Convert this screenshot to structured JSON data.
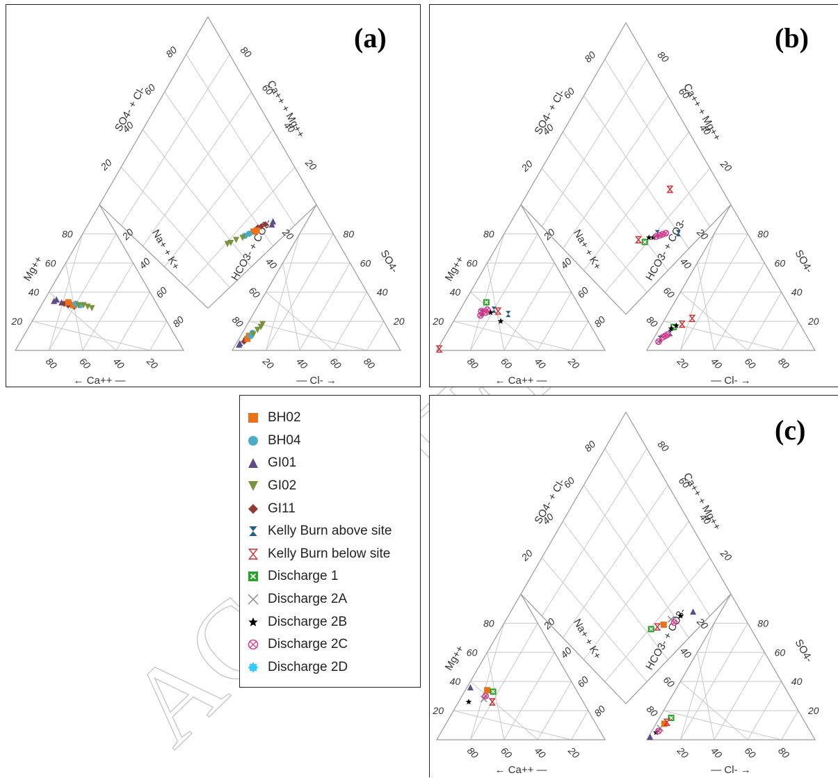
{
  "panels": [
    {
      "label": "(a)"
    },
    {
      "label": "(b)"
    },
    {
      "label": "(c)"
    }
  ],
  "axis_labels": {
    "cation_left": "Mg++",
    "cation_bottom": "Ca++",
    "cation_right": "Na+ + K+",
    "anion_left": "HCO3- + CO3-",
    "anion_bottom": "Cl-",
    "anion_right": "SO4-",
    "diamond_upper_left": "SO4- + Cl-",
    "diamond_upper_right": "Ca++ + Mg++"
  },
  "ticks": [
    "20",
    "40",
    "60",
    "80"
  ],
  "legend": [
    {
      "name": "BH02",
      "marker": "square",
      "color": "#e8711a"
    },
    {
      "name": "BH04",
      "marker": "circle",
      "color": "#4bacc6"
    },
    {
      "name": "GI01",
      "marker": "triangle-up",
      "color": "#5e4a8c"
    },
    {
      "name": "GI02",
      "marker": "triangle-down",
      "color": "#77933c"
    },
    {
      "name": "GI11",
      "marker": "diamond",
      "color": "#953735"
    },
    {
      "name": "Kelly Burn above site",
      "marker": "hourglass",
      "color": "#1f5f8b"
    },
    {
      "name": "Kelly Burn below site",
      "marker": "hourglass-open",
      "color": "#d9262b"
    },
    {
      "name": "Discharge 1",
      "marker": "boxed-x",
      "color": "#2ca02c"
    },
    {
      "name": "Discharge 2A",
      "marker": "x",
      "color": "#8c8c8c"
    },
    {
      "name": "Discharge 2B",
      "marker": "star",
      "color": "#000000"
    },
    {
      "name": "Discharge 2C",
      "marker": "circled-x",
      "color": "#d6338a"
    },
    {
      "name": "Discharge 2D",
      "marker": "asterisk-circle",
      "color": "#33ccff"
    }
  ],
  "watermark": "ACCEPTED MANUSCRIPT",
  "chart_data": [
    {
      "type": "scatter",
      "panel": "(a)",
      "series": [
        {
          "name": "GI01",
          "cation": [
            [
              60,
              34,
              6
            ],
            [
              58,
              35,
              7
            ],
            [
              56,
              33,
              11
            ]
          ],
          "anion": [
            [
              94,
              4,
              2
            ],
            [
              93,
              5,
              2
            ]
          ],
          "diamond": [
            [
              12,
              28
            ],
            [
              11,
              30
            ]
          ]
        },
        {
          "name": "GI11",
          "cation": [
            [
              55,
              32,
              13
            ],
            [
              53,
              31,
              16
            ],
            [
              51,
              32,
              17
            ],
            [
              50,
              30,
              20
            ]
          ],
          "anion": [
            [
              90,
              6,
              4
            ],
            [
              88,
              8,
              4
            ],
            [
              86,
              9,
              5
            ]
          ],
          "diamond": [
            [
              14,
              33
            ],
            [
              15,
              36
            ],
            [
              16,
              38
            ]
          ]
        },
        {
          "name": "BH02",
          "cation": [
            [
              52,
              33,
              15
            ],
            [
              50,
              31,
              19
            ]
          ],
          "anion": [
            [
              87,
              8,
              5
            ],
            [
              85,
              10,
              5
            ]
          ],
          "diamond": [
            [
              15,
              40
            ],
            [
              16,
              42
            ]
          ]
        },
        {
          "name": "BH04",
          "cation": [
            [
              48,
              32,
              20
            ],
            [
              46,
              31,
              23
            ]
          ],
          "anion": [
            [
              84,
              10,
              6
            ],
            [
              82,
              12,
              6
            ]
          ],
          "diamond": [
            [
              17,
              45
            ],
            [
              18,
              48
            ]
          ]
        },
        {
          "name": "GI02",
          "cation": [
            [
              47,
              31,
              22
            ],
            [
              44,
              31,
              25
            ],
            [
              42,
              30,
              28
            ],
            [
              40,
              29,
              31
            ]
          ],
          "anion": [
            [
              82,
              11,
              7
            ],
            [
              78,
              14,
              8
            ],
            [
              75,
              16,
              9
            ],
            [
              73,
              18,
              9
            ]
          ],
          "diamond": [
            [
              18,
              50
            ],
            [
              20,
              54
            ],
            [
              21,
              58
            ],
            [
              22,
              60
            ]
          ]
        }
      ]
    },
    {
      "type": "scatter",
      "panel": "(b)",
      "series": [
        {
          "name": "Kelly Burn above site",
          "cation": [
            [
              60,
              26,
              14
            ],
            [
              52,
              28,
              20
            ],
            [
              45,
              25,
              30
            ]
          ],
          "anion": [
            [
              88,
              8,
              4
            ],
            [
              80,
              12,
              8
            ]
          ],
          "diamond": [
            [
              22,
              48
            ],
            [
              12,
              38
            ]
          ]
        },
        {
          "name": "Kelly Burn below site",
          "cation": [
            [
              98,
              1,
              1
            ],
            [
              50,
              27,
              23
            ]
          ],
          "anion": [
            [
              70,
              18,
              12
            ],
            [
              62,
              22,
              16
            ]
          ],
          "diamond": [
            [
              36,
              22
            ],
            [
              28,
              60
            ]
          ]
        },
        {
          "name": "Discharge 1",
          "cation": [
            [
              54,
              33,
              13
            ]
          ],
          "anion": [
            [
              76,
              16,
              8
            ]
          ],
          "diamond": [
            [
              24,
              58
            ]
          ]
        },
        {
          "name": "Discharge 2B",
          "cation": [
            [
              52,
              20,
              28
            ],
            [
              55,
              26,
              19
            ]
          ],
          "anion": [
            [
              78,
              15,
              7
            ],
            [
              74,
              17,
              9
            ]
          ],
          "diamond": [
            [
              24,
              54
            ],
            [
              22,
              52
            ]
          ]
        },
        {
          "name": "Discharge 2C",
          "cation": [
            [
              60,
              27,
              13
            ],
            [
              58,
              26,
              16
            ],
            [
              62,
              24,
              14
            ],
            [
              56,
              28,
              16
            ]
          ],
          "anion": [
            [
              90,
              6,
              4
            ],
            [
              86,
              9,
              5
            ],
            [
              84,
              10,
              6
            ],
            [
              82,
              11,
              7
            ]
          ],
          "diamond": [
            [
              20,
              48
            ],
            [
              19,
              46
            ],
            [
              18,
              44
            ],
            [
              21,
              50
            ]
          ]
        }
      ]
    },
    {
      "type": "scatter",
      "panel": "(c)",
      "series": [
        {
          "name": "GI01",
          "cation": [
            [
              62,
              36,
              2
            ]
          ],
          "anion": [
            [
              97,
              2,
              1
            ]
          ],
          "diamond": [
            [
              10,
              26
            ]
          ]
        },
        {
          "name": "Discharge 2B",
          "cation": [
            [
              68,
              26,
              6
            ]
          ],
          "anion": [
            [
              92,
              5,
              3
            ]
          ],
          "diamond": [
            [
              14,
              34
            ]
          ]
        },
        {
          "name": "Discharge 2A",
          "cation": [
            [
              58,
              28,
              14
            ]
          ],
          "anion": [
            [
              88,
              8,
              4
            ]
          ],
          "diamond": [
            [
              17,
              40
            ]
          ]
        },
        {
          "name": "Discharge 2C",
          "cation": [
            [
              56,
              30,
              14
            ]
          ],
          "anion": [
            [
              90,
              6,
              4
            ]
          ],
          "diamond": [
            [
              14,
              40
            ]
          ]
        },
        {
          "name": "BH02",
          "cation": [
            [
              53,
              34,
              13
            ]
          ],
          "anion": [
            [
              84,
              11,
              5
            ]
          ],
          "diamond": [
            [
              18,
              46
            ]
          ]
        },
        {
          "name": "Discharge 1",
          "cation": [
            [
              50,
              33,
              17
            ]
          ],
          "anion": [
            [
              78,
              15,
              7
            ]
          ],
          "diamond": [
            [
              22,
              54
            ]
          ]
        },
        {
          "name": "Kelly Burn below site",
          "cation": [
            [
              54,
              26,
              20
            ]
          ],
          "anion": [
            [
              82,
              12,
              6
            ]
          ],
          "diamond": [
            [
              20,
              50
            ]
          ]
        }
      ]
    }
  ]
}
